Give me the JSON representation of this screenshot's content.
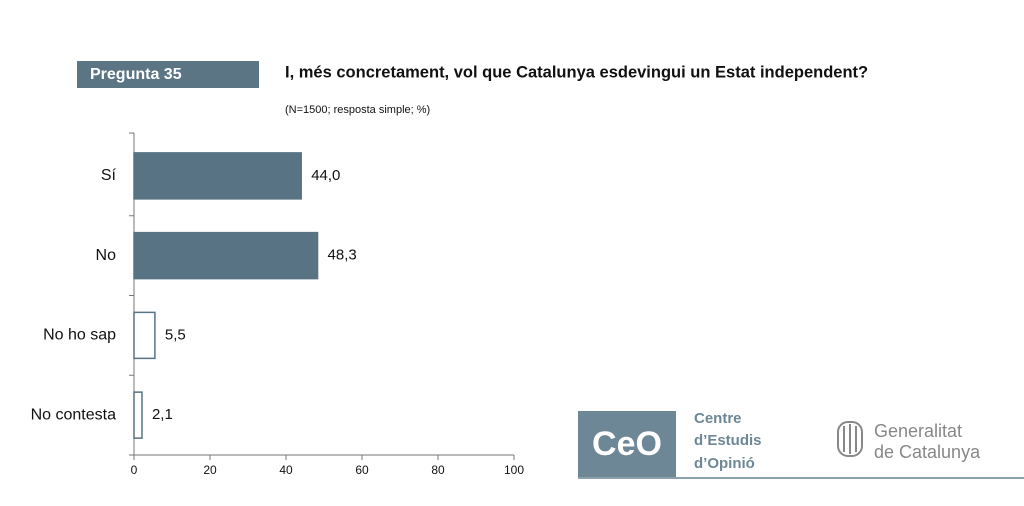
{
  "chart_data": {
    "type": "bar",
    "orientation": "horizontal",
    "label": "Pregunta 35",
    "title": "I, més concretament, vol que Catalunya esdevingui un Estat independent?",
    "subtitle": "(N=1500; resposta simple; %)",
    "categories": [
      "Sí",
      "No",
      "No ho sap",
      "No contesta"
    ],
    "values": [
      44.0,
      48.3,
      5.5,
      2.1
    ],
    "value_labels": [
      "44,0",
      "48,3",
      "5,5",
      "2,1"
    ],
    "colors": [
      "#587383",
      "#587383",
      "#ffffff",
      "#ffffff"
    ],
    "xlim": [
      0,
      100
    ],
    "xticks": [
      0,
      20,
      40,
      60,
      80,
      100
    ],
    "grid": false
  },
  "logos": {
    "ceo_mark": "CeO",
    "ceo_lines": [
      "Centre",
      "d’Estudis",
      "d’Opinió"
    ],
    "generalitat_lines": [
      "Generalitat",
      "de Catalunya"
    ]
  }
}
